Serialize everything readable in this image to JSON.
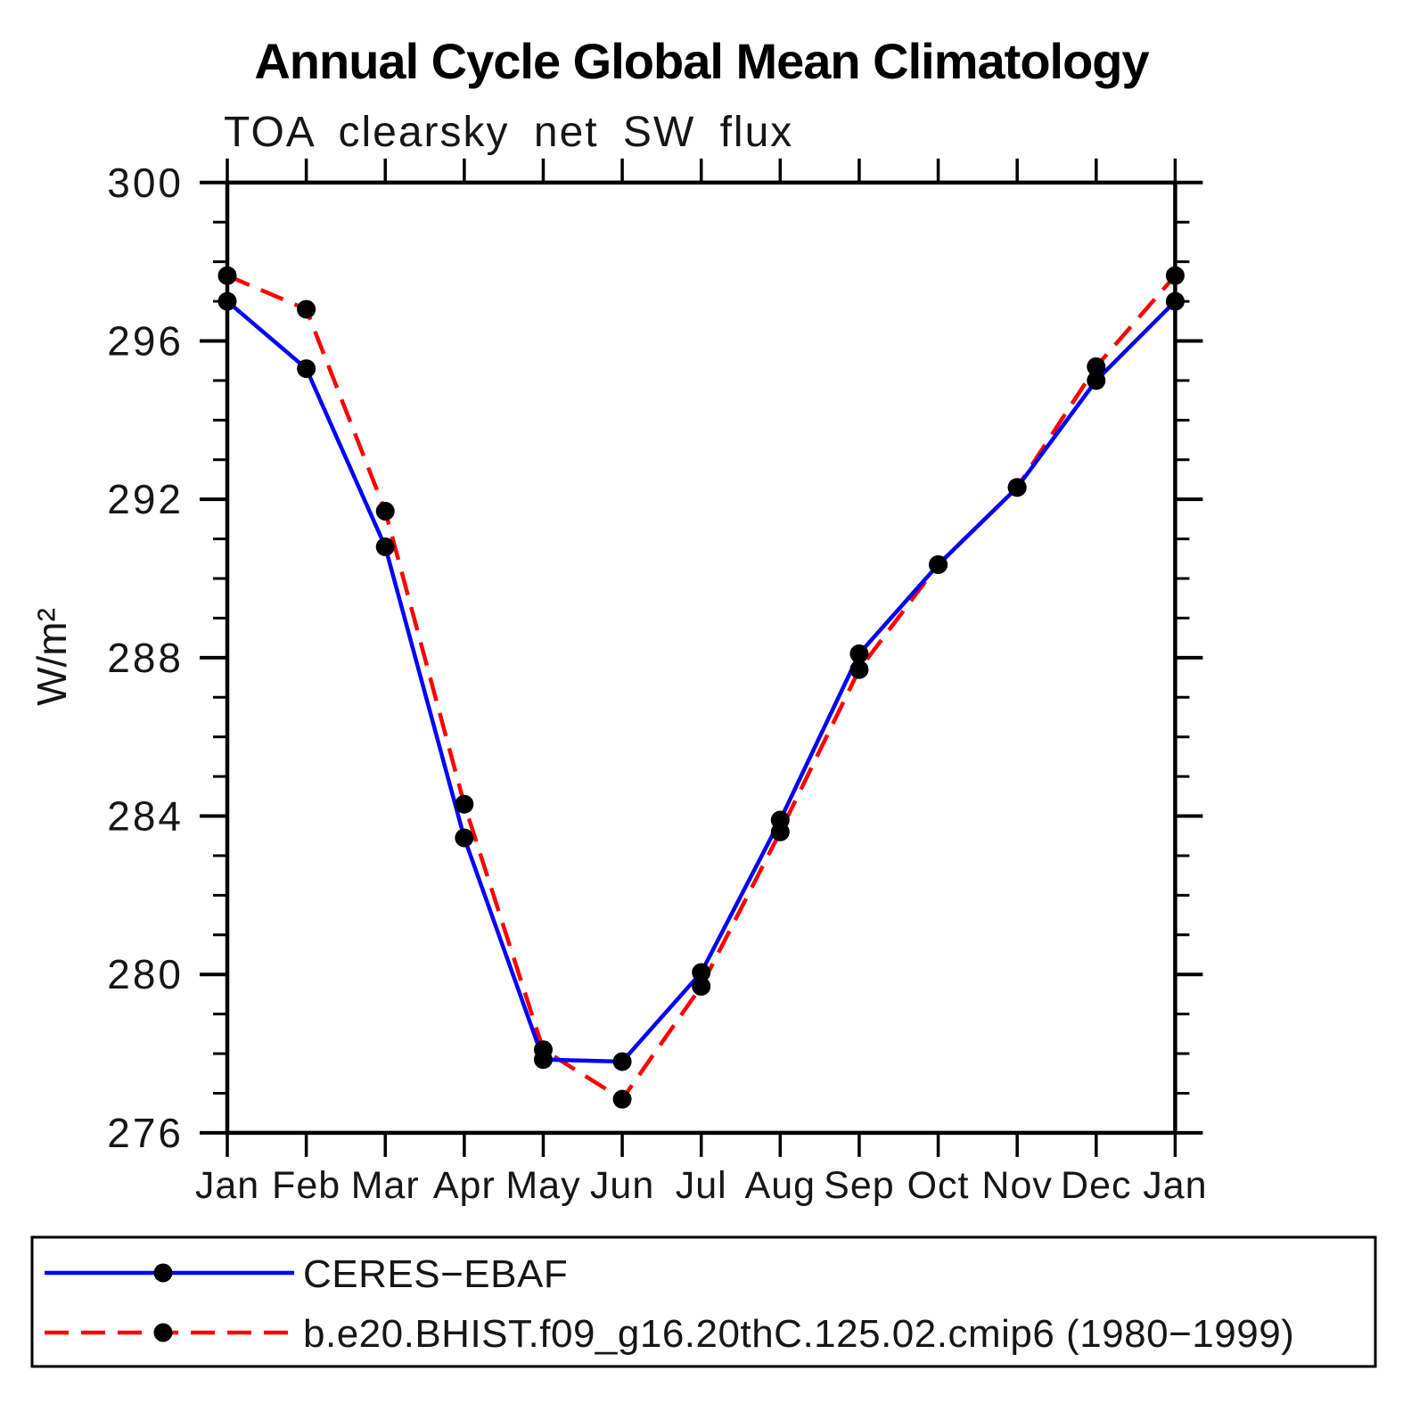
{
  "chart_data": {
    "type": "line",
    "title": "Annual Cycle Global Mean Climatology",
    "subtitle": "TOA clearsky net SW flux",
    "ylabel": "W/m²",
    "xlabel": "",
    "x_tick_labels": [
      "Jan",
      "Feb",
      "Mar",
      "Apr",
      "May",
      "Jun",
      "Jul",
      "Aug",
      "Sep",
      "Oct",
      "Nov",
      "Dec",
      "Jan"
    ],
    "ylim": [
      276,
      300
    ],
    "y_major_ticks": [
      276,
      280,
      284,
      288,
      292,
      296,
      300
    ],
    "y_minor_step": 1,
    "grid": false,
    "legend_position": "bottom-left-box",
    "marker_color": "#000000",
    "axis_color": "#000000",
    "series": [
      {
        "name": "CERES−EBAF",
        "color": "#0000ff",
        "line_style": "solid",
        "marker": "black-dot",
        "values": [
          297.0,
          295.3,
          290.8,
          283.45,
          277.85,
          277.8,
          280.05,
          283.9,
          288.1,
          290.35,
          292.3,
          295.0,
          297.0
        ]
      },
      {
        "name": "b.e20.BHIST.f09_g16.20thC.125.02.cmip6 (1980−1999)",
        "color": "#ff0000",
        "line_style": "dashed",
        "marker": "black-dot",
        "values": [
          297.65,
          296.8,
          291.7,
          284.3,
          278.1,
          276.85,
          279.7,
          283.6,
          287.7,
          290.35,
          292.3,
          295.35,
          297.65
        ]
      }
    ]
  }
}
